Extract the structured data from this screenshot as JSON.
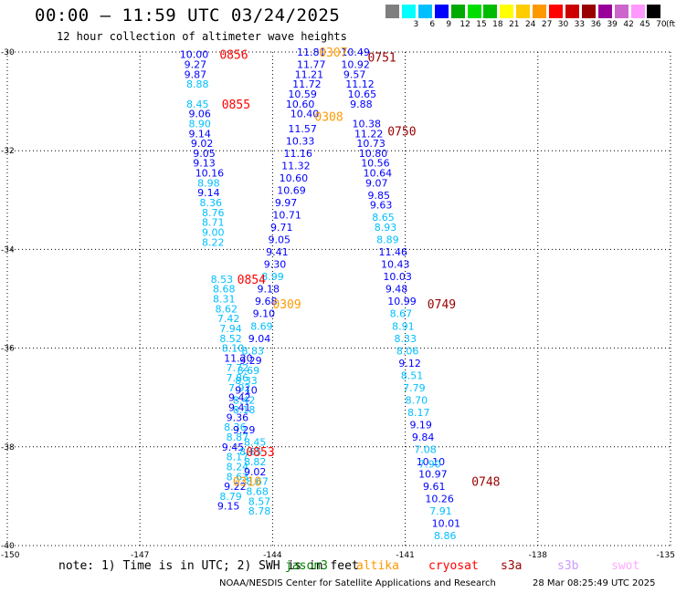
{
  "header": {
    "title": "00:00 – 11:59 UTC 03/24/2025",
    "subtitle": "12 hour collection of altimeter wave heights"
  },
  "legend": {
    "unit": "(ft)",
    "colors": [
      "#7f7f7f",
      "#00ffff",
      "#00bfff",
      "#0000ff",
      "#00aa00",
      "#00dd00",
      "#00bb00",
      "#ffff00",
      "#ffcc00",
      "#ff9900",
      "#ff0000",
      "#cc0000",
      "#990000",
      "#990099",
      "#cc66cc",
      "#ff99ff",
      "#000000"
    ],
    "labels": [
      "",
      "3",
      "6",
      "9",
      "12",
      "15",
      "18",
      "21",
      "24",
      "27",
      "30",
      "33",
      "36",
      "39",
      "42",
      "45",
      "70"
    ]
  },
  "footer": {
    "note": "note: 1) Time is in UTC; 2) SWH is in feet",
    "satellites": [
      {
        "name": "jason3",
        "color": "#008000"
      },
      {
        "name": "altika",
        "color": "#ff9900"
      },
      {
        "name": "cryosat",
        "color": "#ff0000"
      },
      {
        "name": "s3a",
        "color": "#990000"
      },
      {
        "name": "s3b",
        "color": "#cc99ff"
      },
      {
        "name": "swot",
        "color": "#ffaaff"
      }
    ],
    "credit": "NOAA/NESDIS Center for Satellite Applications and Research",
    "timestamp": "28 Mar 08:25:49 UTC 2025"
  },
  "chart_data": {
    "type": "scatter",
    "xlim": [
      -150,
      -135
    ],
    "ylim": [
      -40,
      -30
    ],
    "x_ticks": [
      -150,
      -147,
      -144,
      -141,
      -138,
      -135
    ],
    "y_ticks": [
      -30,
      -32,
      -34,
      -36,
      -38,
      -40
    ],
    "grid": true,
    "series": [
      {
        "name": "cryosat",
        "color_key": "cryosat",
        "points": [
          {
            "x": -146.1,
            "y": -30.05,
            "v": "10.00",
            "c": "#0000ff"
          },
          {
            "x": -146.0,
            "y": -30.25,
            "v": "9.27",
            "c": "#0000ff"
          },
          {
            "x": -146.0,
            "y": -30.45,
            "v": "9.87",
            "c": "#0000ff"
          },
          {
            "x": -145.95,
            "y": -30.65,
            "v": "8.88",
            "c": "#00bfff"
          },
          {
            "x": -145.95,
            "y": -31.05,
            "v": "8.45",
            "c": "#00bfff"
          },
          {
            "x": -145.9,
            "y": -31.25,
            "v": "9.06",
            "c": "#0000ff"
          },
          {
            "x": -145.9,
            "y": -31.45,
            "v": "8.90",
            "c": "#00bfff"
          },
          {
            "x": -145.9,
            "y": -31.65,
            "v": "9.14",
            "c": "#0000ff"
          },
          {
            "x": -145.85,
            "y": -31.85,
            "v": "9.02",
            "c": "#0000ff"
          },
          {
            "x": -145.8,
            "y": -32.05,
            "v": "9.05",
            "c": "#0000ff"
          },
          {
            "x": -145.8,
            "y": -32.25,
            "v": "9.13",
            "c": "#0000ff"
          },
          {
            "x": -145.75,
            "y": -32.45,
            "v": "10.16",
            "c": "#0000ff"
          },
          {
            "x": -145.7,
            "y": -32.65,
            "v": "8.98",
            "c": "#00bfff"
          },
          {
            "x": -145.7,
            "y": -32.85,
            "v": "9.14",
            "c": "#0000ff"
          },
          {
            "x": -145.65,
            "y": -33.05,
            "v": "8.36",
            "c": "#00bfff"
          },
          {
            "x": -145.6,
            "y": -33.25,
            "v": "8.76",
            "c": "#00bfff"
          },
          {
            "x": -145.6,
            "y": -33.45,
            "v": "8.71",
            "c": "#00bfff"
          },
          {
            "x": -145.6,
            "y": -33.65,
            "v": "9.00",
            "c": "#00bfff"
          },
          {
            "x": -145.6,
            "y": -33.85,
            "v": "8.22",
            "c": "#00bfff"
          },
          {
            "x": -145.4,
            "y": -34.6,
            "v": "8.53",
            "c": "#00bfff"
          },
          {
            "x": -145.35,
            "y": -34.8,
            "v": "8.68",
            "c": "#00bfff"
          },
          {
            "x": -145.35,
            "y": -35.0,
            "v": "8.31",
            "c": "#00bfff"
          },
          {
            "x": -145.3,
            "y": -35.2,
            "v": "8.62",
            "c": "#00bfff"
          },
          {
            "x": -145.25,
            "y": -35.4,
            "v": "7.42",
            "c": "#00bfff"
          },
          {
            "x": -145.2,
            "y": -35.6,
            "v": "7.94",
            "c": "#00bfff"
          },
          {
            "x": -145.2,
            "y": -35.8,
            "v": "8.52",
            "c": "#00bfff"
          },
          {
            "x": -145.15,
            "y": -36.0,
            "v": "8.10",
            "c": "#00bfff"
          },
          {
            "x": -145.1,
            "y": -36.2,
            "v": "11.20",
            "c": "#0000ff"
          },
          {
            "x": -145.05,
            "y": -36.4,
            "v": "7.72",
            "c": "#00bfff"
          },
          {
            "x": -145.05,
            "y": -36.6,
            "v": "7.86",
            "c": "#00bfff"
          },
          {
            "x": -145.0,
            "y": -36.8,
            "v": "7.92",
            "c": "#00bfff"
          },
          {
            "x": -145.0,
            "y": -37.0,
            "v": "9.42",
            "c": "#0000ff"
          },
          {
            "x": -145.0,
            "y": -37.2,
            "v": "9.41",
            "c": "#0000ff"
          },
          {
            "x": -145.05,
            "y": -37.4,
            "v": "9.36",
            "c": "#0000ff"
          },
          {
            "x": -145.1,
            "y": -37.6,
            "v": "8.36",
            "c": "#00bfff"
          },
          {
            "x": -145.05,
            "y": -37.8,
            "v": "8.87",
            "c": "#00bfff"
          },
          {
            "x": -145.15,
            "y": -38.0,
            "v": "9.45",
            "c": "#0000ff"
          },
          {
            "x": -145.05,
            "y": -38.2,
            "v": "8.17",
            "c": "#00bfff"
          },
          {
            "x": -145.05,
            "y": -38.4,
            "v": "8.24",
            "c": "#00bfff"
          },
          {
            "x": -145.05,
            "y": -38.6,
            "v": "8.63",
            "c": "#00bfff"
          },
          {
            "x": -145.1,
            "y": -38.8,
            "v": "9.22",
            "c": "#0000ff"
          },
          {
            "x": -145.2,
            "y": -39.0,
            "v": "8.79",
            "c": "#00bfff"
          },
          {
            "x": -145.25,
            "y": -39.2,
            "v": "9.15",
            "c": "#0000ff"
          },
          {
            "x": -144.65,
            "y": -37.9,
            "v": "8.45",
            "c": "#00bfff"
          },
          {
            "x": -144.75,
            "y": -38.1,
            "v": "8.65",
            "c": "#00bfff"
          },
          {
            "x": -144.65,
            "y": -38.3,
            "v": "8.82",
            "c": "#00bfff"
          },
          {
            "x": -144.65,
            "y": -38.5,
            "v": "9.02",
            "c": "#0000ff"
          },
          {
            "x": -144.6,
            "y": -38.7,
            "v": "8.67",
            "c": "#00bfff"
          },
          {
            "x": -144.6,
            "y": -38.9,
            "v": "8.68",
            "c": "#00bfff"
          },
          {
            "x": -144.55,
            "y": -39.1,
            "v": "8.57",
            "c": "#00bfff"
          },
          {
            "x": -144.55,
            "y": -39.3,
            "v": "8.78",
            "c": "#00bfff"
          },
          {
            "x": -144.7,
            "y": -36.05,
            "v": "8.83",
            "c": "#00bfff"
          },
          {
            "x": -144.75,
            "y": -36.25,
            "v": "9.29",
            "c": "#0000ff"
          },
          {
            "x": -144.8,
            "y": -36.45,
            "v": "8.69",
            "c": "#00bfff"
          },
          {
            "x": -144.85,
            "y": -36.65,
            "v": "8.33",
            "c": "#00bfff"
          },
          {
            "x": -144.85,
            "y": -36.85,
            "v": "9.10",
            "c": "#0000ff"
          },
          {
            "x": -144.9,
            "y": -37.05,
            "v": "8.42",
            "c": "#00bfff"
          },
          {
            "x": -144.9,
            "y": -37.25,
            "v": "8.18",
            "c": "#00bfff"
          },
          {
            "x": -144.9,
            "y": -37.65,
            "v": "9.29",
            "c": "#0000ff"
          }
        ]
      },
      {
        "name": "s3a",
        "color_key": "s3a",
        "points": [
          {
            "x": -143.45,
            "y": -30.0,
            "v": "11.81",
            "c": "#0000ff"
          },
          {
            "x": -142.45,
            "y": -30.0,
            "v": "10.49",
            "c": "#0000ff"
          },
          {
            "x": -143.45,
            "y": -30.25,
            "v": "11.77",
            "c": "#0000ff"
          },
          {
            "x": -142.45,
            "y": -30.25,
            "v": "10.92",
            "c": "#0000ff"
          },
          {
            "x": -143.5,
            "y": -30.45,
            "v": "11.21",
            "c": "#0000ff"
          },
          {
            "x": -142.4,
            "y": -30.45,
            "v": "9.57",
            "c": "#0000ff"
          },
          {
            "x": -143.55,
            "y": -30.65,
            "v": "11.72",
            "c": "#0000ff"
          },
          {
            "x": -142.35,
            "y": -30.65,
            "v": "11.12",
            "c": "#0000ff"
          },
          {
            "x": -143.65,
            "y": -30.85,
            "v": "10.59",
            "c": "#0000ff"
          },
          {
            "x": -142.3,
            "y": -30.85,
            "v": "10.65",
            "c": "#0000ff"
          },
          {
            "x": -143.7,
            "y": -31.05,
            "v": "10.60",
            "c": "#0000ff"
          },
          {
            "x": -142.25,
            "y": -31.05,
            "v": "9.88",
            "c": "#0000ff"
          },
          {
            "x": -143.6,
            "y": -31.25,
            "v": "10.40",
            "c": "#0000ff"
          },
          {
            "x": -142.2,
            "y": -31.45,
            "v": "10.38",
            "c": "#0000ff"
          },
          {
            "x": -143.65,
            "y": -31.55,
            "v": "11.57",
            "c": "#0000ff"
          },
          {
            "x": -142.15,
            "y": -31.65,
            "v": "11.22",
            "c": "#0000ff"
          },
          {
            "x": -143.7,
            "y": -31.8,
            "v": "10.33",
            "c": "#0000ff"
          },
          {
            "x": -142.1,
            "y": -31.85,
            "v": "10.73",
            "c": "#0000ff"
          },
          {
            "x": -143.75,
            "y": -32.05,
            "v": "11.16",
            "c": "#0000ff"
          },
          {
            "x": -142.05,
            "y": -32.05,
            "v": "10.80",
            "c": "#0000ff"
          },
          {
            "x": -143.8,
            "y": -32.3,
            "v": "11.32",
            "c": "#0000ff"
          },
          {
            "x": -142.0,
            "y": -32.25,
            "v": "10.56",
            "c": "#0000ff"
          },
          {
            "x": -143.85,
            "y": -32.55,
            "v": "10.60",
            "c": "#0000ff"
          },
          {
            "x": -141.95,
            "y": -32.45,
            "v": "10.64",
            "c": "#0000ff"
          },
          {
            "x": -143.9,
            "y": -32.8,
            "v": "10.69",
            "c": "#0000ff"
          },
          {
            "x": -141.9,
            "y": -32.65,
            "v": "9.07",
            "c": "#0000ff"
          },
          {
            "x": -143.95,
            "y": -33.05,
            "v": "9.97",
            "c": "#0000ff"
          },
          {
            "x": -141.85,
            "y": -32.9,
            "v": "9.85",
            "c": "#0000ff"
          },
          {
            "x": -144.0,
            "y": -33.3,
            "v": "10.71",
            "c": "#0000ff"
          },
          {
            "x": -141.8,
            "y": -33.1,
            "v": "9.63",
            "c": "#0000ff"
          },
          {
            "x": -144.05,
            "y": -33.55,
            "v": "9.71",
            "c": "#0000ff"
          },
          {
            "x": -141.75,
            "y": -33.35,
            "v": "8.65",
            "c": "#00bfff"
          },
          {
            "x": -144.1,
            "y": -33.8,
            "v": "9.05",
            "c": "#0000ff"
          },
          {
            "x": -141.7,
            "y": -33.55,
            "v": "8.93",
            "c": "#00bfff"
          },
          {
            "x": -144.15,
            "y": -34.05,
            "v": "9.41",
            "c": "#0000ff"
          },
          {
            "x": -141.65,
            "y": -33.8,
            "v": "8.89",
            "c": "#00bfff"
          },
          {
            "x": -144.2,
            "y": -34.3,
            "v": "9.30",
            "c": "#0000ff"
          },
          {
            "x": -141.6,
            "y": -34.05,
            "v": "11.46",
            "c": "#0000ff"
          },
          {
            "x": -144.25,
            "y": -34.55,
            "v": "8.99",
            "c": "#00bfff"
          },
          {
            "x": -141.55,
            "y": -34.3,
            "v": "10.43",
            "c": "#0000ff"
          },
          {
            "x": -144.35,
            "y": -34.8,
            "v": "9.18",
            "c": "#0000ff"
          },
          {
            "x": -141.5,
            "y": -34.55,
            "v": "10.03",
            "c": "#0000ff"
          },
          {
            "x": -144.4,
            "y": -35.05,
            "v": "9.68",
            "c": "#0000ff"
          },
          {
            "x": -141.45,
            "y": -34.8,
            "v": "9.48",
            "c": "#0000ff"
          },
          {
            "x": -144.45,
            "y": -35.3,
            "v": "9.10",
            "c": "#0000ff"
          },
          {
            "x": -141.4,
            "y": -35.05,
            "v": "10.99",
            "c": "#0000ff"
          },
          {
            "x": -144.5,
            "y": -35.55,
            "v": "8.69",
            "c": "#00bfff"
          },
          {
            "x": -141.35,
            "y": -35.3,
            "v": "8.67",
            "c": "#00bfff"
          },
          {
            "x": -144.55,
            "y": -35.8,
            "v": "9.04",
            "c": "#0000ff"
          },
          {
            "x": -141.3,
            "y": -35.55,
            "v": "8.91",
            "c": "#00bfff"
          },
          {
            "x": -141.25,
            "y": -35.8,
            "v": "8.33",
            "c": "#00bfff"
          },
          {
            "x": -141.2,
            "y": -36.05,
            "v": "8.06",
            "c": "#00bfff"
          },
          {
            "x": -141.15,
            "y": -36.3,
            "v": "9.12",
            "c": "#0000ff"
          },
          {
            "x": -141.1,
            "y": -36.55,
            "v": "8.51",
            "c": "#00bfff"
          },
          {
            "x": -141.05,
            "y": -36.8,
            "v": "7.79",
            "c": "#00bfff"
          },
          {
            "x": -141.0,
            "y": -37.05,
            "v": "8.70",
            "c": "#00bfff"
          },
          {
            "x": -140.95,
            "y": -37.3,
            "v": "8.17",
            "c": "#00bfff"
          },
          {
            "x": -140.9,
            "y": -37.55,
            "v": "9.19",
            "c": "#0000ff"
          },
          {
            "x": -140.85,
            "y": -37.8,
            "v": "9.84",
            "c": "#0000ff"
          },
          {
            "x": -140.8,
            "y": -38.05,
            "v": "7.08",
            "c": "#00bfff"
          },
          {
            "x": -140.75,
            "y": -38.3,
            "v": "10.10",
            "c": "#0000ff"
          },
          {
            "x": -140.7,
            "y": -38.55,
            "v": "10.97",
            "c": "#0000ff"
          },
          {
            "x": -140.6,
            "y": -38.8,
            "v": "9.61",
            "c": "#0000ff"
          },
          {
            "x": -140.55,
            "y": -39.05,
            "v": "10.26",
            "c": "#0000ff"
          },
          {
            "x": -140.45,
            "y": -39.3,
            "v": "7.91",
            "c": "#00bfff"
          },
          {
            "x": -140.4,
            "y": -39.55,
            "v": "10.01",
            "c": "#0000ff"
          },
          {
            "x": -140.35,
            "y": -39.8,
            "v": "8.86",
            "c": "#00bfff"
          },
          {
            "x": -140.7,
            "y": -38.35,
            "v": "7.90",
            "c": "#00bfff"
          }
        ]
      }
    ],
    "time_labels": [
      {
        "x": -145.2,
        "y": -30.05,
        "t": "0856",
        "color_key": "cryosat"
      },
      {
        "x": -145.15,
        "y": -31.05,
        "t": "0855",
        "color_key": "cryosat"
      },
      {
        "x": -144.8,
        "y": -34.6,
        "t": "0854",
        "color_key": "cryosat"
      },
      {
        "x": -144.6,
        "y": -38.1,
        "t": "0853",
        "color_key": "cryosat"
      },
      {
        "x": -142.95,
        "y": -30.0,
        "t": "0307",
        "color_key": "altika"
      },
      {
        "x": -143.05,
        "y": -31.3,
        "t": "0308",
        "color_key": "altika"
      },
      {
        "x": -144.0,
        "y": -35.1,
        "t": "0309",
        "color_key": "altika"
      },
      {
        "x": -144.9,
        "y": -38.7,
        "t": "0310",
        "color_key": "altika"
      },
      {
        "x": -141.85,
        "y": -30.1,
        "t": "0751",
        "color_key": "s3a"
      },
      {
        "x": -141.4,
        "y": -31.6,
        "t": "0750",
        "color_key": "s3a"
      },
      {
        "x": -140.5,
        "y": -35.1,
        "t": "0749",
        "color_key": "s3a"
      },
      {
        "x": -139.5,
        "y": -38.7,
        "t": "0748",
        "color_key": "s3a"
      }
    ]
  }
}
